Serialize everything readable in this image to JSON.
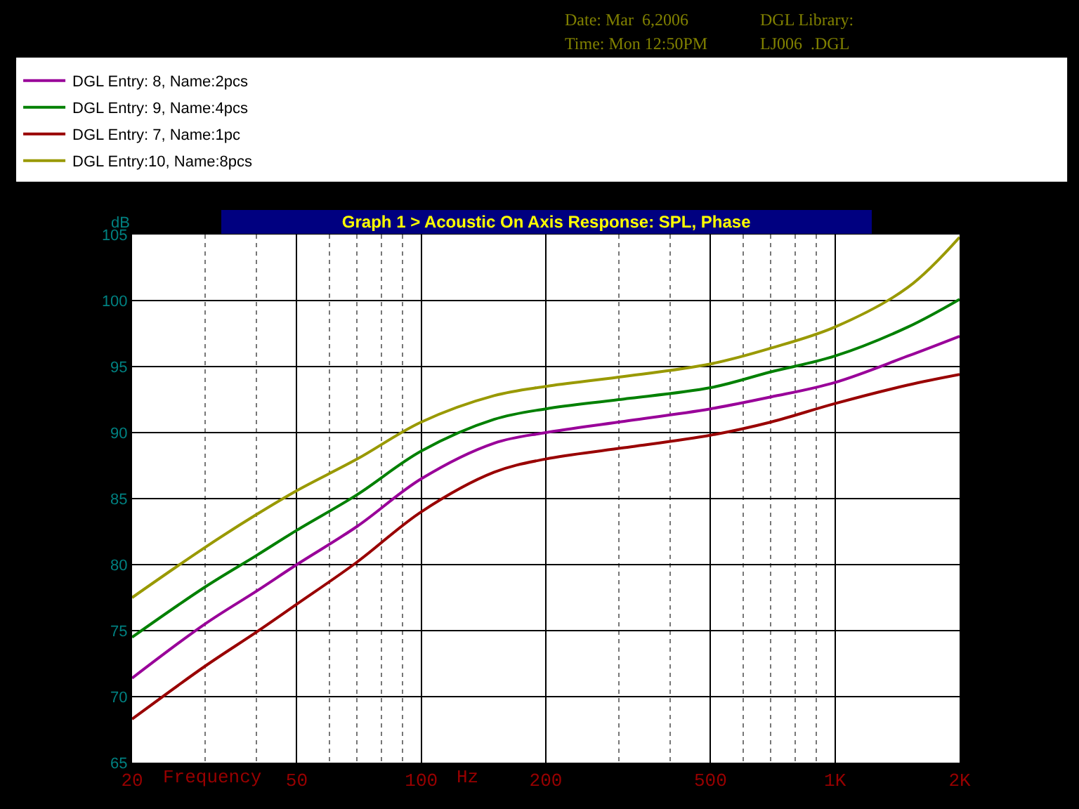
{
  "chart_data": {
    "type": "line",
    "title": "Graph 1 > Acoustic On Axis Response: SPL, Phase",
    "xlabel": "Frequency",
    "ylabel": "dB",
    "annotations": [
      "Hz",
      "Date: Mar  6,2006",
      "Time: Mon 12:50PM",
      "DGL Library:",
      "LJ006  .DGL"
    ],
    "x": [
      20,
      30,
      40,
      50,
      70,
      100,
      150,
      200,
      300,
      500,
      700,
      1000,
      1500,
      2000
    ],
    "series": [
      {
        "name": "DGL Entry: 8, Name:2pcs",
        "color": "#990099",
        "values": [
          71.4,
          75.5,
          78,
          80,
          82.9,
          86.5,
          89.2,
          90,
          90.8,
          91.8,
          92.7,
          93.8,
          95.8,
          97.3
        ]
      },
      {
        "name": "DGL Entry: 9, Name:4pcs",
        "color": "#008000",
        "values": [
          74.5,
          78.3,
          80.7,
          82.6,
          85.3,
          88.6,
          91,
          91.8,
          92.5,
          93.4,
          94.6,
          95.8,
          98,
          100.1
        ]
      },
      {
        "name": "DGL Entry: 7, Name:1pc",
        "color": "#990000",
        "values": [
          68.3,
          72.3,
          74.9,
          77,
          80.2,
          84,
          87,
          88,
          88.8,
          89.8,
          90.8,
          92.2,
          93.6,
          94.4
        ]
      },
      {
        "name": "DGL Entry:10, Name:8pcs",
        "color": "#999900",
        "values": [
          77.5,
          81.3,
          83.8,
          85.6,
          88,
          90.8,
          92.8,
          93.5,
          94.2,
          95.2,
          96.4,
          98,
          101,
          104.8
        ]
      }
    ],
    "log": "x",
    "xlim": [
      20,
      2000
    ],
    "ylim": [
      65,
      105
    ],
    "xticks": [
      20,
      50,
      100,
      200,
      500,
      {
        "value": 1000,
        "label": "1K"
      },
      {
        "value": 2000,
        "label": "2K"
      }
    ],
    "yticks": [
      65,
      70,
      75,
      80,
      85,
      90,
      95,
      100,
      105
    ],
    "grid": true,
    "legend": "top",
    "marker": "none",
    "line_style": "solid"
  }
}
